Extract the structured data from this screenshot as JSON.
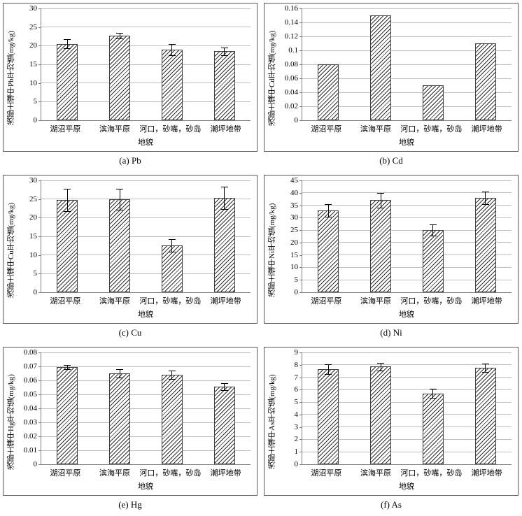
{
  "style": {
    "bar_hatch_color": "#2f2f2f",
    "bar_border_color": "#404040",
    "gridline_color": "#bfbfbf",
    "axis_color": "#7f7f7f",
    "frame_color": "#595959",
    "background": "#ffffff"
  },
  "chart_data": [
    {
      "type": "bar",
      "title": "(a) Pb",
      "ylabel": "浅部土壤中Pb平均值(mg/kg)",
      "xlabel": "地貌",
      "categories": [
        "湖沼平原",
        "滨海平原",
        "河口，砂嘴，砂岛",
        "潮坪地带"
      ],
      "values": [
        20.5,
        22.7,
        19.0,
        18.5
      ],
      "errors": [
        1.2,
        0.8,
        1.5,
        1.0
      ],
      "ylim": [
        0,
        30
      ],
      "yticks": [
        "0",
        "5",
        "10",
        "15",
        "20",
        "25",
        "30"
      ],
      "grid": true,
      "legend": "none"
    },
    {
      "type": "bar",
      "title": "(b) Cd",
      "ylabel": "浅部土壤中Cd平均值(mg/kg)",
      "xlabel": "地貌",
      "categories": [
        "湖沼平原",
        "滨海平原",
        "河口，砂嘴，砂岛",
        "潮坪地带"
      ],
      "values": [
        0.08,
        0.15,
        0.05,
        0.11
      ],
      "errors": null,
      "ylim": [
        0,
        0.16
      ],
      "yticks": [
        "0",
        "0.02",
        "0.04",
        "0.06",
        "0.08",
        "0.1",
        "0.12",
        "0.14",
        "0.16"
      ],
      "grid": true,
      "legend": "none"
    },
    {
      "type": "bar",
      "title": "(c) Cu",
      "ylabel": "浅部土壤中Cu平均值(mg/kg)",
      "xlabel": "地貌",
      "categories": [
        "湖沼平原",
        "滨海平原",
        "河口，砂嘴，砂岛",
        "潮坪地带"
      ],
      "values": [
        24.8,
        25.0,
        12.6,
        25.4
      ],
      "errors": [
        3.0,
        2.8,
        1.7,
        3.0
      ],
      "ylim": [
        0,
        30
      ],
      "yticks": [
        "0",
        "5",
        "10",
        "15",
        "20",
        "25",
        "30"
      ],
      "grid": true,
      "legend": "none"
    },
    {
      "type": "bar",
      "title": "(d) Ni",
      "ylabel": "浅部土壤中Ni平均值(mg/kg)",
      "xlabel": "地貌",
      "categories": [
        "湖沼平原",
        "滨海平原",
        "河口，砂嘴，砂岛",
        "潮坪地带"
      ],
      "values": [
        33.0,
        37.0,
        25.0,
        38.0
      ],
      "errors": [
        2.5,
        3.0,
        2.2,
        2.5
      ],
      "ylim": [
        0,
        45
      ],
      "yticks": [
        "0",
        "5",
        "10",
        "15",
        "20",
        "25",
        "30",
        "35",
        "40",
        "45"
      ],
      "grid": true,
      "legend": "none"
    },
    {
      "type": "bar",
      "title": "(e) Hg",
      "ylabel": "浅部土壤中Hg平均值(mg/kg)",
      "xlabel": "地貌",
      "categories": [
        "湖沼平原",
        "滨海平原",
        "河口，砂嘴，砂岛",
        "潮坪地带"
      ],
      "values": [
        0.0695,
        0.065,
        0.064,
        0.0555
      ],
      "errors": [
        0.0015,
        0.003,
        0.003,
        0.0025
      ],
      "ylim": [
        0,
        0.08
      ],
      "yticks": [
        "0",
        "0.01",
        "0.02",
        "0.03",
        "0.04",
        "0.05",
        "0.06",
        "0.07",
        "0.08"
      ],
      "grid": true,
      "legend": "none"
    },
    {
      "type": "bar",
      "title": "(f) As",
      "ylabel": "浅部土壤中As平均值(mg/kg)",
      "xlabel": "地貌",
      "categories": [
        "湖沼平原",
        "滨海平原",
        "河口，砂嘴，砂岛",
        "潮坪地带"
      ],
      "values": [
        7.65,
        7.85,
        5.7,
        7.75
      ],
      "errors": [
        0.4,
        0.3,
        0.35,
        0.35
      ],
      "ylim": [
        0,
        9
      ],
      "yticks": [
        "0",
        "1",
        "2",
        "3",
        "4",
        "5",
        "6",
        "7",
        "8",
        "9"
      ],
      "grid": true,
      "legend": "none"
    }
  ]
}
